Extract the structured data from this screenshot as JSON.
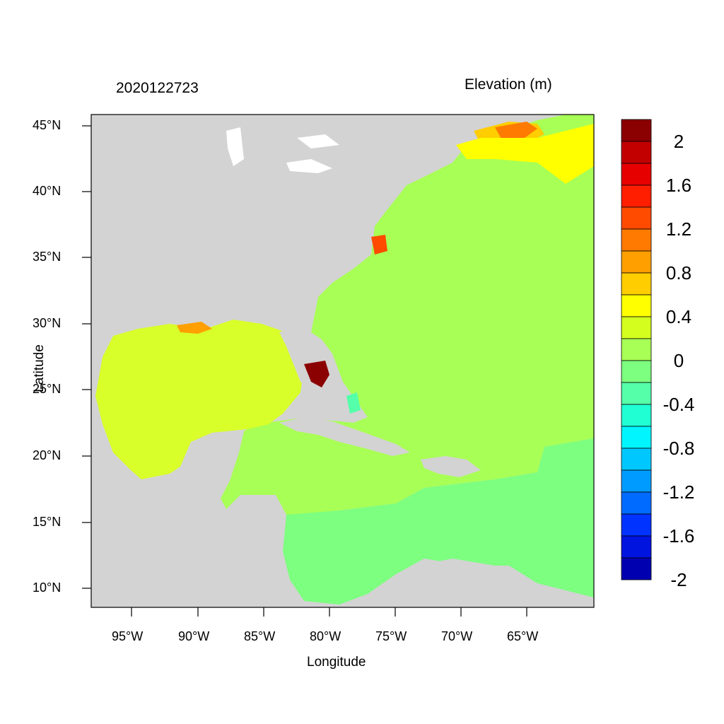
{
  "title_left": "2020122723",
  "title_right": "Elevation (m)",
  "xlabel": "Longitude",
  "ylabel": "Latitude",
  "x_ticks": [
    "95°W",
    "90°W",
    "85°W",
    "80°W",
    "75°W",
    "70°W",
    "65°W"
  ],
  "y_ticks": [
    "45°N",
    "40°N",
    "35°N",
    "30°N",
    "25°N",
    "20°N",
    "15°N",
    "10°N"
  ],
  "colorbar": {
    "colors": [
      "#8b0000",
      "#c20000",
      "#e60000",
      "#ff1e00",
      "#ff4b00",
      "#ff7a00",
      "#ff9f00",
      "#ffcd00",
      "#ffff00",
      "#d4ff1e",
      "#a8ff55",
      "#7dff80",
      "#55ffaa",
      "#20ffd4",
      "#00f5ff",
      "#00c8ff",
      "#009bff",
      "#006bff",
      "#0033ff",
      "#0014e0",
      "#0000b0"
    ],
    "labels": [
      "2",
      "1.6",
      "1.2",
      "0.8",
      "0.4",
      "0",
      "-0.4",
      "-0.8",
      "-1.2",
      "-1.6",
      "-2"
    ]
  },
  "colors": {
    "land": "#d3d3d3",
    "gulf": "#d8ff2a",
    "atlantic": "#a8ff55",
    "caribbean_south": "#7dff80",
    "surge_high": "#8b0000"
  }
}
